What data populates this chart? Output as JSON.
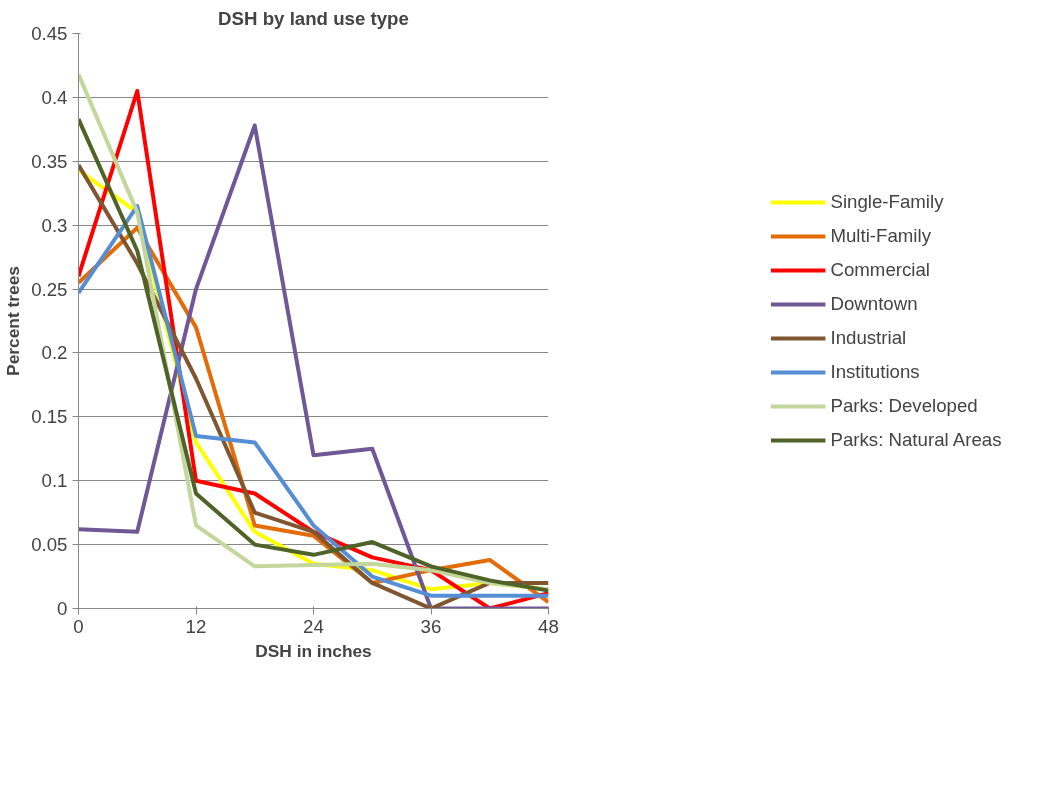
{
  "chart_data": {
    "type": "line",
    "title": "DSH by land use type",
    "xlabel": "DSH in inches",
    "ylabel": "Percent trees",
    "x": [
      0,
      6,
      12,
      18,
      24,
      30,
      36,
      42,
      48
    ],
    "xlim": [
      0,
      48
    ],
    "xticks": [
      0,
      12,
      24,
      36,
      48
    ],
    "ylim": [
      0,
      0.45
    ],
    "yticks": [
      0,
      0.05,
      0.1,
      0.15,
      0.2,
      0.25,
      0.3,
      0.35,
      0.4,
      0.45
    ],
    "grid": "y",
    "legend": "right",
    "marker": "none",
    "line_style": "solid",
    "series": [
      {
        "name": "Single-Family",
        "color": "#ffff00",
        "values": [
          0.343,
          0.31,
          0.13,
          0.06,
          0.035,
          0.03,
          0.015,
          0.02,
          0.015
        ]
      },
      {
        "name": "Multi-Family",
        "color": "#e36c09",
        "values": [
          0.255,
          0.298,
          0.22,
          0.065,
          0.057,
          0.02,
          0.03,
          0.038,
          0.005
        ]
      },
      {
        "name": "Commercial",
        "color": "#ff0000",
        "values": [
          0.26,
          0.405,
          0.1,
          0.09,
          0.06,
          0.04,
          0.03,
          0.0,
          0.012
        ]
      },
      {
        "name": "Downtown",
        "color": "#705796",
        "values": [
          0.062,
          0.06,
          0.25,
          0.378,
          0.12,
          0.125,
          0.0,
          0.0,
          0.0
        ]
      },
      {
        "name": "Industrial",
        "color": "#7f5630",
        "values": [
          0.347,
          0.27,
          0.18,
          0.075,
          0.06,
          0.02,
          0.0,
          0.02,
          0.02
        ]
      },
      {
        "name": "Institutions",
        "color": "#558ed5",
        "values": [
          0.247,
          0.315,
          0.135,
          0.13,
          0.065,
          0.025,
          0.01,
          0.01,
          0.01
        ]
      },
      {
        "name": "Parks: Developed",
        "color": "#c3d69b",
        "values": [
          0.418,
          0.31,
          0.065,
          0.033,
          0.034,
          0.035,
          0.03,
          0.02,
          0.015
        ]
      },
      {
        "name": "Parks: Natural Areas",
        "color": "#4f6228",
        "values": [
          0.383,
          0.28,
          0.09,
          0.05,
          0.042,
          0.052,
          0.033,
          0.022,
          0.014
        ]
      }
    ]
  }
}
